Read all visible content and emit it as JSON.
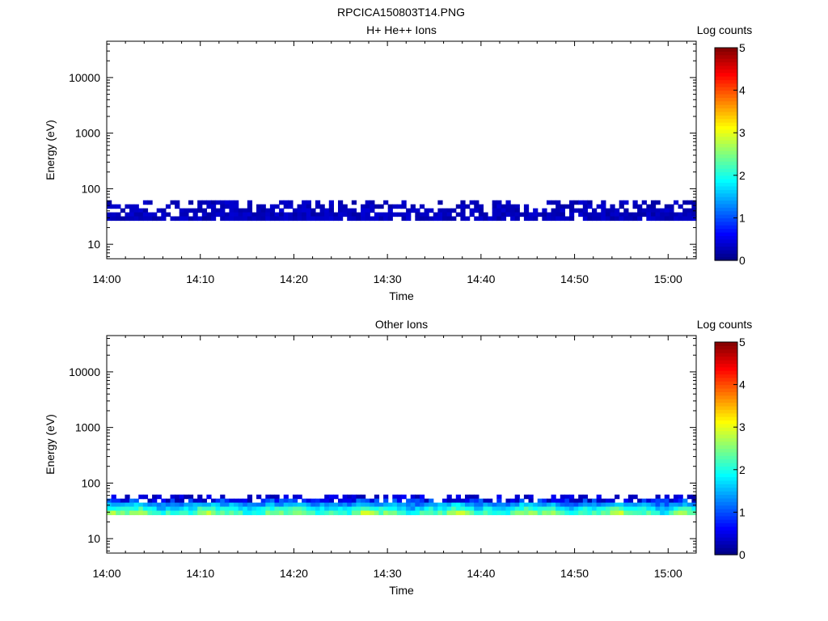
{
  "figure": {
    "title": "RPCICA150803T14.PNG"
  },
  "chart_data": [
    {
      "type": "heatmap",
      "title": "H+ He++ Ions",
      "xlabel": "Time",
      "ylabel": "Energy (eV)",
      "x_range": [
        "14:00",
        "15:03"
      ],
      "x_ticks": [
        "14:00",
        "14:10",
        "14:20",
        "14:30",
        "14:40",
        "14:50",
        "15:00"
      ],
      "y_scale": "log",
      "y_range": [
        5.5,
        45000
      ],
      "y_ticks": [
        "10",
        "100",
        "1000",
        "10000"
      ],
      "colorbar": {
        "label": "Log counts",
        "range": [
          0,
          5
        ],
        "ticks": [
          "0",
          "1",
          "2",
          "3",
          "4",
          "5"
        ]
      },
      "band": {
        "energy_range_eV": [
          27,
          62
        ],
        "time_bins": 130,
        "energy_bins": 5,
        "fill_fraction": [
          0.42,
          0.55,
          0.72,
          0.85,
          0.9
        ],
        "log_counts_typical": 0.3,
        "log_counts_max": 0.6
      }
    },
    {
      "type": "heatmap",
      "title": "Other Ions",
      "xlabel": "Time",
      "ylabel": "Energy (eV)",
      "x_range": [
        "14:00",
        "15:03"
      ],
      "x_ticks": [
        "14:00",
        "14:10",
        "14:20",
        "14:30",
        "14:40",
        "14:50",
        "15:00"
      ],
      "y_scale": "log",
      "y_range": [
        5.5,
        45000
      ],
      "y_ticks": [
        "10",
        "100",
        "1000",
        "10000"
      ],
      "colorbar": {
        "label": "Log counts",
        "range": [
          0,
          5
        ],
        "ticks": [
          "0",
          "1",
          "2",
          "3",
          "4",
          "5"
        ]
      },
      "band": {
        "energy_range_eV": [
          27,
          62
        ],
        "time_bins": 130,
        "energy_bins": 5,
        "fill_fraction": [
          0.45,
          0.85,
          1.0,
          1.0,
          1.0
        ],
        "log_counts_typical": 2.2,
        "log_counts_max": 3.4
      }
    }
  ]
}
